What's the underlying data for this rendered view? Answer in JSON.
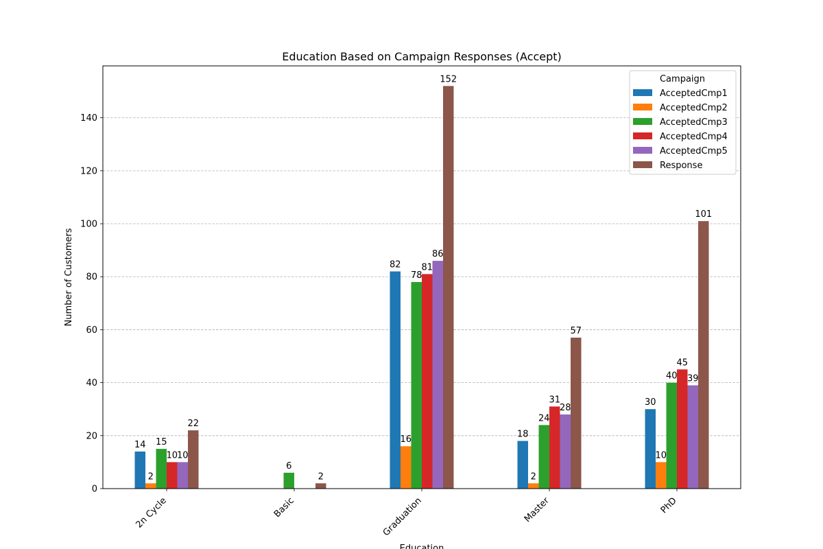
{
  "chart_data": {
    "type": "bar",
    "title": "Education Based on Campaign Responses (Accept)",
    "xlabel": "Education",
    "ylabel": "Number of Customers",
    "categories": [
      "2n Cycle",
      "Basic",
      "Graduation",
      "Master",
      "PhD"
    ],
    "ylim": [
      0,
      159.6
    ],
    "yticks": [
      0,
      20,
      40,
      60,
      80,
      100,
      120,
      140
    ],
    "grid": "y",
    "legend": {
      "title": "Campaign",
      "placement": "top-right"
    },
    "series": [
      {
        "name": "AcceptedCmp1",
        "color": "#1f77b4",
        "values": [
          14,
          0,
          82,
          18,
          30
        ]
      },
      {
        "name": "AcceptedCmp2",
        "color": "#ff7f0e",
        "values": [
          2,
          0,
          16,
          2,
          10
        ]
      },
      {
        "name": "AcceptedCmp3",
        "color": "#2ca02c",
        "values": [
          15,
          6,
          78,
          24,
          40
        ]
      },
      {
        "name": "AcceptedCmp4",
        "color": "#d62728",
        "values": [
          10,
          0,
          81,
          31,
          45
        ]
      },
      {
        "name": "AcceptedCmp5",
        "color": "#9467bd",
        "values": [
          10,
          0,
          86,
          28,
          39
        ]
      },
      {
        "name": "Response",
        "color": "#8c564b",
        "values": [
          22,
          2,
          152,
          57,
          101
        ]
      }
    ]
  }
}
